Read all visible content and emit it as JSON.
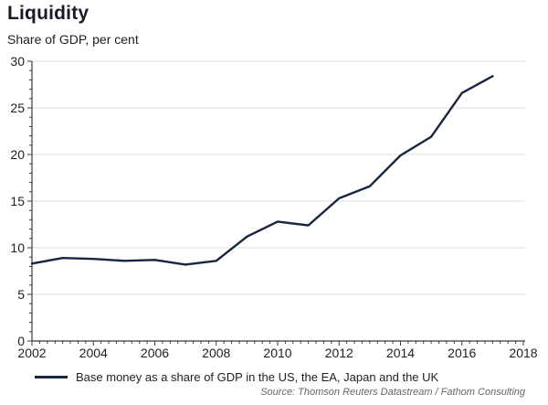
{
  "header": {
    "title": "Liquidity",
    "subtitle": "Share of GDP, per cent"
  },
  "chart_data": {
    "type": "line",
    "title": "Liquidity",
    "subtitle": "Share of GDP, per cent",
    "x": [
      2002,
      2003,
      2004,
      2005,
      2006,
      2007,
      2008,
      2009,
      2010,
      2011,
      2012,
      2013,
      2014,
      2015,
      2016,
      2017
    ],
    "series": [
      {
        "name": "Base money as a share of GDP in the US, the EA, Japan and the UK",
        "color": "#17263f",
        "values": [
          8.3,
          8.9,
          8.8,
          8.6,
          8.7,
          8.2,
          8.6,
          11.2,
          12.8,
          12.4,
          15.3,
          16.6,
          19.9,
          21.9,
          26.6,
          28.4
        ]
      }
    ],
    "xlabel": "",
    "ylabel": "",
    "xlim": [
      2002,
      2018
    ],
    "ylim": [
      0,
      30
    ],
    "x_ticks": [
      2002,
      2004,
      2006,
      2008,
      2010,
      2012,
      2014,
      2016,
      2018
    ],
    "y_ticks": [
      0,
      5,
      10,
      15,
      20,
      25,
      30
    ],
    "x_minor_step": 0.25,
    "y_minor_step": 1,
    "grid": "horizontal-major",
    "legend_position": "bottom"
  },
  "legend": {
    "label": "Base money as a share of GDP in the US, the EA, Japan and the UK"
  },
  "source": {
    "text": "Source: Thomson Reuters Datastream / Fathom Consulting"
  },
  "colors": {
    "line": "#17263f",
    "grid": "#dcdcdc",
    "axis": "#3a3a3a",
    "tick": "#3a3a3a",
    "text": "#1f1f1f",
    "title": "#191927",
    "source_text": "#666666"
  }
}
